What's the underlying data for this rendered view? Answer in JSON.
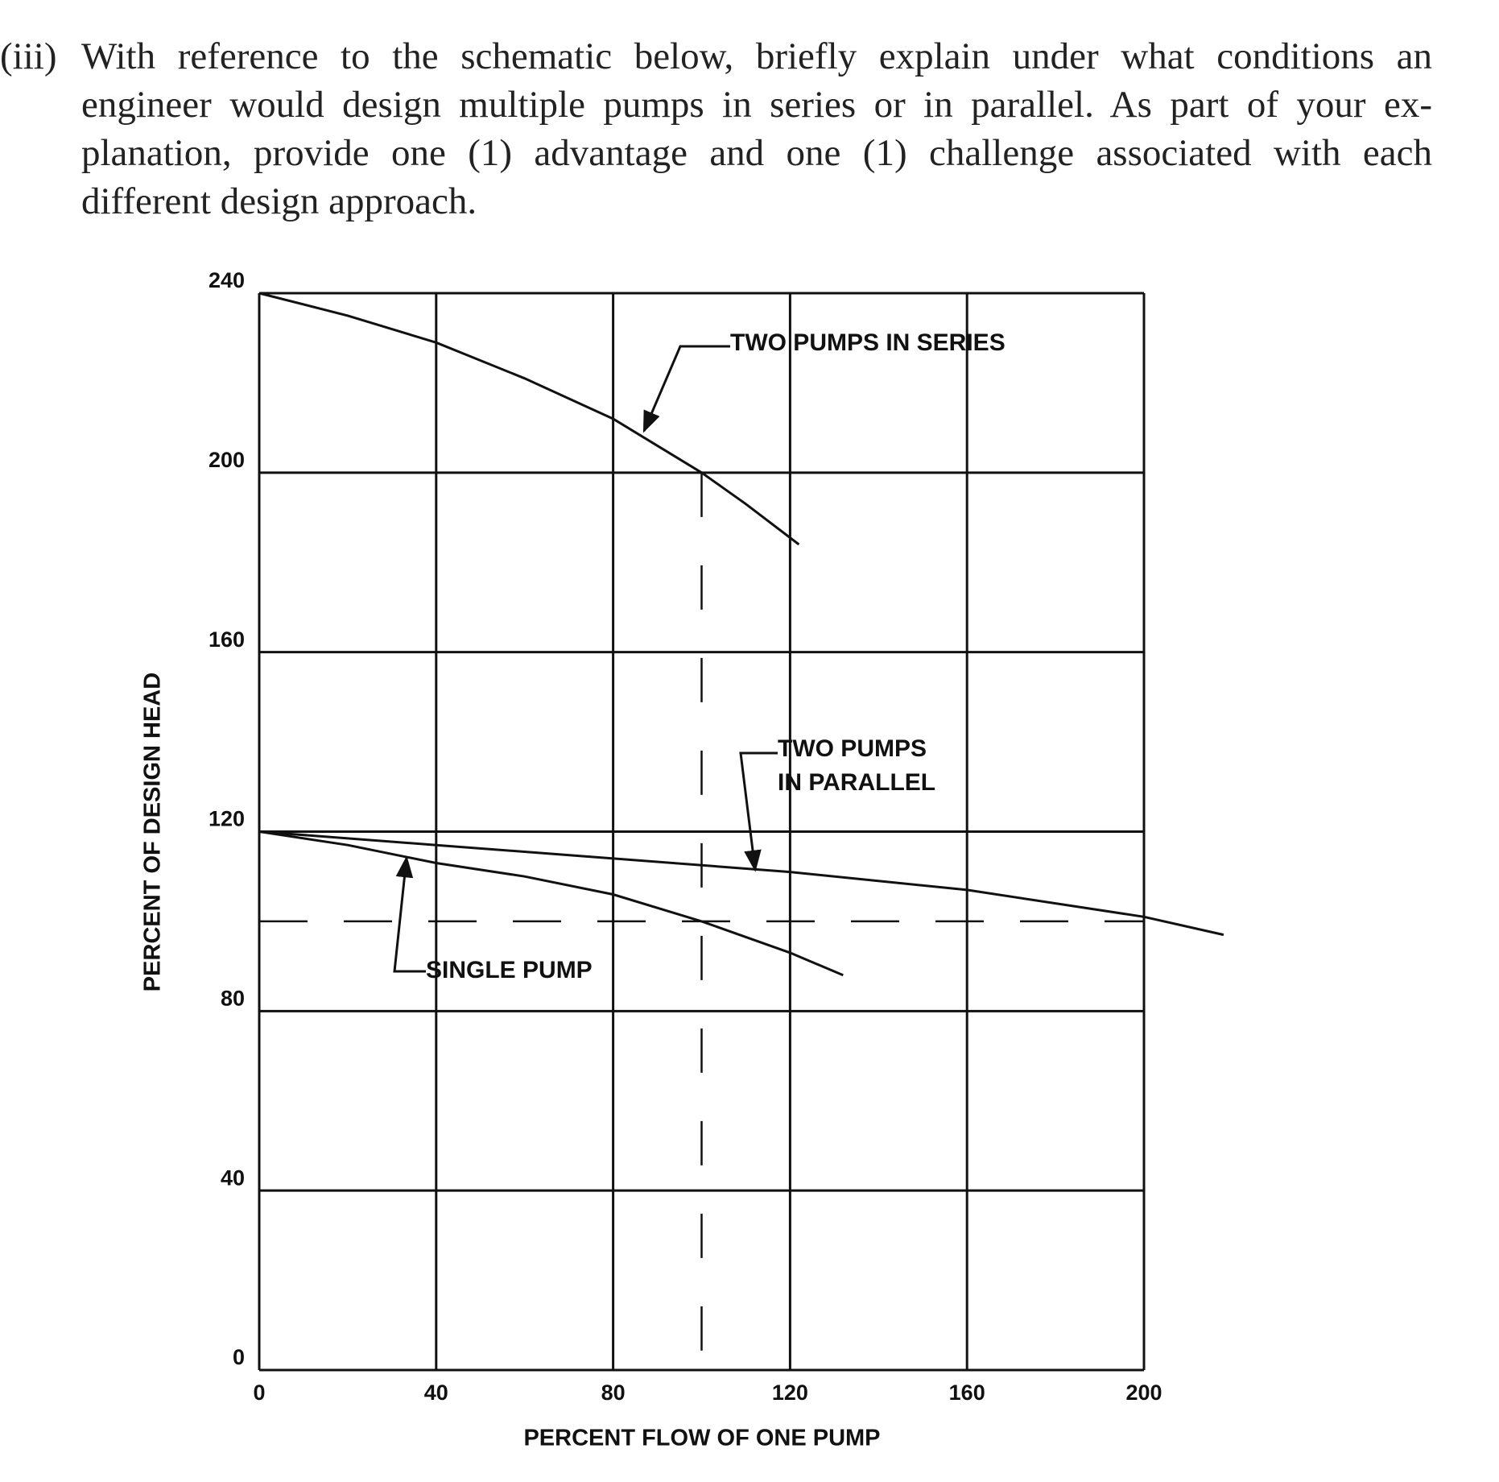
{
  "question": {
    "number": "(iii)",
    "lines": [
      "With reference to the schematic below, briefly explain under what conditions an",
      "engineer would design multiple pumps in series or in parallel.  As part of your ex-",
      "planation, provide one (1) advantage and one (1) challenge associated with each",
      "different design approach."
    ]
  },
  "chart_data": {
    "type": "line",
    "xlabel": "PERCENT FLOW OF ONE PUMP",
    "ylabel": "PERCENT OF DESIGN HEAD",
    "xlim": [
      0,
      200
    ],
    "ylim": [
      0,
      240
    ],
    "xticks": [
      0,
      40,
      80,
      120,
      160,
      200
    ],
    "yticks": [
      0,
      40,
      80,
      120,
      160,
      200,
      240
    ],
    "grid": true,
    "hlines": [
      100
    ],
    "vlines": [
      100
    ],
    "series": [
      {
        "name": "TWO PUMPS IN SERIES",
        "color": "#111111",
        "x": [
          0,
          20,
          40,
          60,
          80,
          100,
          110,
          122
        ],
        "values": [
          240,
          235,
          229,
          221,
          212,
          200,
          193,
          184
        ]
      },
      {
        "name": "TWO PUMPS IN PARALLEL",
        "label_lines": [
          "TWO PUMPS",
          "IN PARALLEL"
        ],
        "color": "#111111",
        "x": [
          0,
          40,
          80,
          120,
          160,
          200,
          218
        ],
        "values": [
          120,
          117,
          114,
          111,
          107,
          101,
          97
        ]
      },
      {
        "name": "SINGLE PUMP",
        "color": "#111111",
        "x": [
          0,
          20,
          40,
          60,
          80,
          100,
          120,
          132
        ],
        "values": [
          120,
          117,
          113,
          110,
          106,
          100,
          93,
          88
        ]
      }
    ]
  }
}
